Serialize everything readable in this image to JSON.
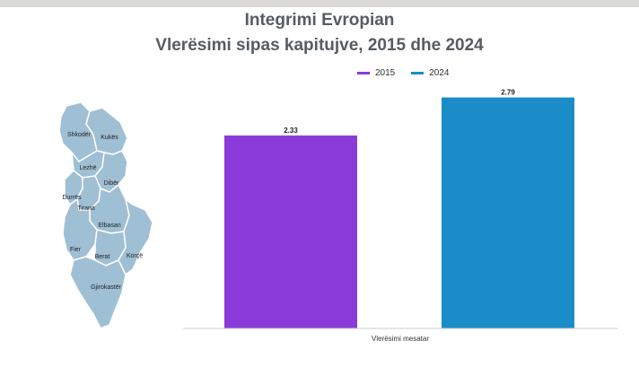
{
  "header": {
    "title_line1": "Integrimi Evropian",
    "title_line2": "Vlerësimi sipas kapitujve, 2015 dhe 2024"
  },
  "map": {
    "fill_color": "#9fbfd4",
    "stroke_color": "#ffffff",
    "labels": {
      "shkoder": "Shkodër",
      "kukes": "Kukës",
      "lezhe": "Lezhë",
      "diber": "Dibër",
      "durres": "Durrës",
      "tirana": "Tirana",
      "elbasan": "Elbasan",
      "fier": "Fier",
      "berat": "Berat",
      "korce": "Korçë",
      "gjirokaster": "Gjirokastër"
    }
  },
  "chart_data": {
    "type": "bar",
    "categories": [
      "Vlerësimi mesatar"
    ],
    "series": [
      {
        "name": "2015",
        "values": [
          2.33
        ],
        "color": "#8a3ad8"
      },
      {
        "name": "2024",
        "values": [
          2.79
        ],
        "color": "#1a8cc8"
      }
    ],
    "data_labels": [
      "2.33",
      "2.79"
    ],
    "ylim": [
      0,
      3.1
    ],
    "grid": false,
    "legend_position": "top-right"
  }
}
